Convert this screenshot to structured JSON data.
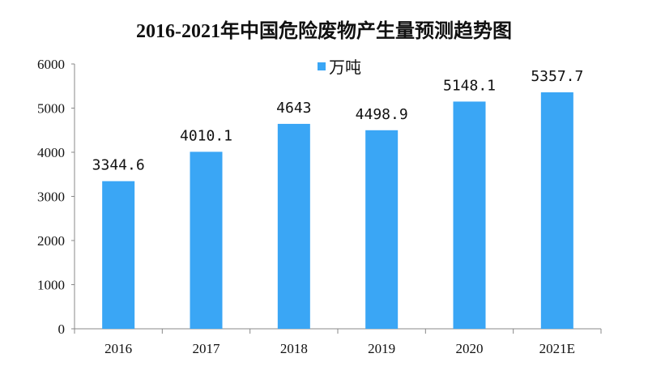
{
  "chart_data": {
    "type": "bar",
    "title": "2016-2021年中国危险废物产生量预测趋势图",
    "categories": [
      "2016",
      "2017",
      "2018",
      "2019",
      "2020",
      "2021E"
    ],
    "series": [
      {
        "name": "万吨",
        "values": [
          3344.6,
          4010.1,
          4643,
          4498.9,
          5148.1,
          5357.7
        ]
      }
    ],
    "data_labels": [
      "3344.6",
      "4010.1",
      "4643",
      "4498.9",
      "5148.1",
      "5357.7"
    ],
    "yticks": [
      "0",
      "1000",
      "2000",
      "3000",
      "4000",
      "5000",
      "6000"
    ],
    "ylim": [
      0,
      6000
    ],
    "xlabel": "",
    "ylabel": "",
    "grid": false,
    "legend": "top-center",
    "bar_color": "#3aa6f5"
  }
}
